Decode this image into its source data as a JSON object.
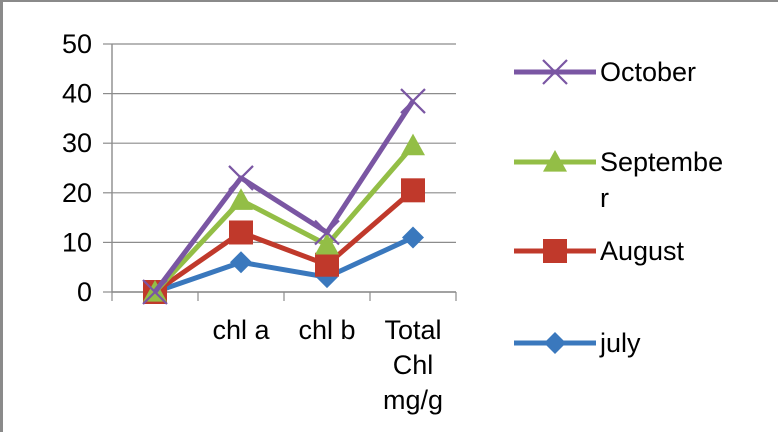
{
  "chart_data": {
    "type": "line",
    "categories": [
      "",
      "chl a",
      "chl b",
      "Total Chl mg/g"
    ],
    "category_lines": [
      [
        ""
      ],
      [
        "chl a"
      ],
      [
        "chl b"
      ],
      [
        "Total",
        "Chl",
        "mg/g"
      ]
    ],
    "ylim": [
      0,
      50
    ],
    "yticks": [
      "0",
      "10",
      "20",
      "30",
      "40",
      "50"
    ],
    "legend_position": "right",
    "series": [
      {
        "name": "October",
        "legend_lines": [
          "October"
        ],
        "color": "#7a56a3",
        "marker": "x",
        "values": [
          0,
          23,
          12,
          38.5
        ]
      },
      {
        "name": "September",
        "legend_lines": [
          "Septembe",
          "r"
        ],
        "color": "#93be46",
        "marker": "triangle",
        "values": [
          0,
          18.5,
          9.5,
          29.5
        ]
      },
      {
        "name": "August",
        "legend_lines": [
          "August"
        ],
        "color": "#c0392b",
        "marker": "square",
        "values": [
          0,
          12,
          5.5,
          20.5
        ]
      },
      {
        "name": "july",
        "legend_lines": [
          "july"
        ],
        "color": "#3a78bd",
        "marker": "diamond",
        "values": [
          0,
          6,
          3,
          11
        ]
      }
    ]
  }
}
